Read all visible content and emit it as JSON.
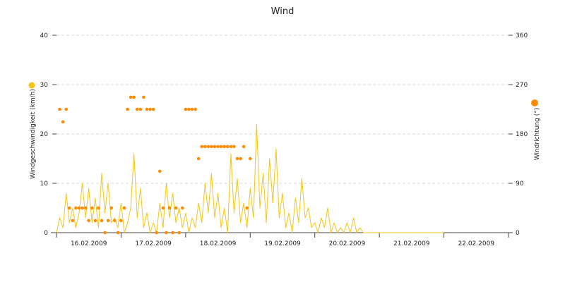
{
  "chart_data": {
    "type": "line",
    "title": "Wind",
    "ylabel_left": "Windgeschwindigkeit (km/h)",
    "ylabel_right": "Windrichtung (°)",
    "ylim_left": [
      0,
      40
    ],
    "ylim_right": [
      0,
      360
    ],
    "yticks_left": [
      "0",
      "10",
      "20",
      "30",
      "40"
    ],
    "yticks_right": [
      "0",
      "90",
      "180",
      "270",
      "360"
    ],
    "grid": true,
    "legend": "left and right of plot",
    "x_range": [
      0,
      7
    ],
    "xticks": [
      "16.02.2009",
      "17.02.2009",
      "18.02.2009",
      "19.02.2009",
      "20.02.2009",
      "21.02.2009",
      "22.02.2009"
    ],
    "colors": {
      "speed": "#f5c518",
      "direction": "#ff8c00",
      "grid": "#d8d8d8"
    },
    "series": [
      {
        "name": "Windgeschwindigkeit",
        "style": "line",
        "axis": "left",
        "points": [
          [
            0.0,
            0
          ],
          [
            0.05,
            3
          ],
          [
            0.1,
            1
          ],
          [
            0.15,
            8
          ],
          [
            0.2,
            2
          ],
          [
            0.25,
            5
          ],
          [
            0.3,
            1
          ],
          [
            0.35,
            4
          ],
          [
            0.4,
            10
          ],
          [
            0.45,
            3
          ],
          [
            0.5,
            9
          ],
          [
            0.55,
            2
          ],
          [
            0.6,
            7
          ],
          [
            0.65,
            1
          ],
          [
            0.7,
            12
          ],
          [
            0.75,
            4
          ],
          [
            0.8,
            10
          ],
          [
            0.85,
            2
          ],
          [
            0.9,
            3
          ],
          [
            0.95,
            1
          ],
          [
            1.0,
            6
          ],
          [
            1.05,
            0
          ],
          [
            1.1,
            2
          ],
          [
            1.15,
            5
          ],
          [
            1.2,
            16
          ],
          [
            1.25,
            3
          ],
          [
            1.3,
            9
          ],
          [
            1.35,
            1
          ],
          [
            1.4,
            4
          ],
          [
            1.45,
            0
          ],
          [
            1.5,
            2
          ],
          [
            1.55,
            0
          ],
          [
            1.6,
            6
          ],
          [
            1.65,
            1
          ],
          [
            1.7,
            10
          ],
          [
            1.75,
            3
          ],
          [
            1.8,
            8
          ],
          [
            1.85,
            2
          ],
          [
            1.9,
            5
          ],
          [
            1.95,
            1
          ],
          [
            2.0,
            4
          ],
          [
            2.05,
            0
          ],
          [
            2.1,
            3
          ],
          [
            2.15,
            1
          ],
          [
            2.2,
            6
          ],
          [
            2.25,
            2
          ],
          [
            2.3,
            10
          ],
          [
            2.35,
            4
          ],
          [
            2.4,
            12
          ],
          [
            2.45,
            3
          ],
          [
            2.5,
            8
          ],
          [
            2.55,
            1
          ],
          [
            2.6,
            5
          ],
          [
            2.65,
            0
          ],
          [
            2.7,
            16
          ],
          [
            2.75,
            4
          ],
          [
            2.8,
            11
          ],
          [
            2.85,
            2
          ],
          [
            2.9,
            6
          ],
          [
            2.95,
            1
          ],
          [
            3.0,
            9
          ],
          [
            3.05,
            3
          ],
          [
            3.1,
            22
          ],
          [
            3.15,
            5
          ],
          [
            3.2,
            12
          ],
          [
            3.25,
            2
          ],
          [
            3.3,
            15
          ],
          [
            3.35,
            6
          ],
          [
            3.4,
            17
          ],
          [
            3.45,
            3
          ],
          [
            3.5,
            8
          ],
          [
            3.55,
            1
          ],
          [
            3.6,
            4
          ],
          [
            3.65,
            0
          ],
          [
            3.7,
            7
          ],
          [
            3.75,
            2
          ],
          [
            3.8,
            11
          ],
          [
            3.85,
            3
          ],
          [
            3.9,
            5
          ],
          [
            3.95,
            1
          ],
          [
            4.0,
            2
          ],
          [
            4.05,
            0
          ],
          [
            4.1,
            3
          ],
          [
            4.15,
            1
          ],
          [
            4.2,
            5
          ],
          [
            4.25,
            0
          ],
          [
            4.3,
            2
          ],
          [
            4.35,
            0
          ],
          [
            4.4,
            1
          ],
          [
            4.45,
            0
          ],
          [
            4.5,
            2
          ],
          [
            4.55,
            0
          ],
          [
            4.6,
            3
          ],
          [
            4.65,
            0
          ],
          [
            4.7,
            1
          ],
          [
            4.75,
            0
          ],
          [
            4.8,
            0
          ],
          [
            4.85,
            0
          ],
          [
            4.9,
            0
          ],
          [
            4.95,
            0
          ],
          [
            5.0,
            0
          ],
          [
            5.05,
            0
          ],
          [
            5.1,
            0
          ],
          [
            5.15,
            0
          ],
          [
            5.2,
            0
          ],
          [
            5.25,
            0
          ],
          [
            5.3,
            0
          ],
          [
            5.35,
            0
          ],
          [
            5.4,
            0
          ],
          [
            5.45,
            0
          ],
          [
            5.5,
            0
          ],
          [
            5.55,
            0
          ],
          [
            5.6,
            0
          ],
          [
            5.65,
            0
          ],
          [
            5.7,
            0
          ],
          [
            5.75,
            0
          ],
          [
            5.8,
            0
          ],
          [
            5.85,
            0
          ],
          [
            5.9,
            0
          ],
          [
            5.95,
            0
          ],
          [
            6.0,
            0
          ]
        ]
      },
      {
        "name": "Windrichtung",
        "style": "markers",
        "axis": "right",
        "points": [
          [
            0.05,
            225
          ],
          [
            0.1,
            202
          ],
          [
            0.15,
            225
          ],
          [
            0.2,
            45
          ],
          [
            0.25,
            22
          ],
          [
            0.3,
            45
          ],
          [
            0.35,
            45
          ],
          [
            0.4,
            45
          ],
          [
            0.45,
            45
          ],
          [
            0.5,
            22
          ],
          [
            0.55,
            45
          ],
          [
            0.6,
            22
          ],
          [
            0.65,
            45
          ],
          [
            0.7,
            22
          ],
          [
            0.75,
            0
          ],
          [
            0.8,
            22
          ],
          [
            0.85,
            45
          ],
          [
            0.9,
            22
          ],
          [
            0.95,
            0
          ],
          [
            1.0,
            22
          ],
          [
            1.05,
            45
          ],
          [
            1.1,
            225
          ],
          [
            1.15,
            247
          ],
          [
            1.2,
            247
          ],
          [
            1.25,
            225
          ],
          [
            1.3,
            225
          ],
          [
            1.35,
            247
          ],
          [
            1.4,
            225
          ],
          [
            1.45,
            225
          ],
          [
            1.5,
            225
          ],
          [
            1.55,
            0
          ],
          [
            1.6,
            112
          ],
          [
            1.65,
            45
          ],
          [
            1.7,
            0
          ],
          [
            1.75,
            45
          ],
          [
            1.8,
            0
          ],
          [
            1.85,
            45
          ],
          [
            1.9,
            0
          ],
          [
            1.95,
            45
          ],
          [
            2.0,
            225
          ],
          [
            2.05,
            225
          ],
          [
            2.1,
            225
          ],
          [
            2.15,
            225
          ],
          [
            2.2,
            135
          ],
          [
            2.25,
            157
          ],
          [
            2.3,
            157
          ],
          [
            2.35,
            157
          ],
          [
            2.4,
            157
          ],
          [
            2.45,
            157
          ],
          [
            2.5,
            157
          ],
          [
            2.55,
            157
          ],
          [
            2.6,
            157
          ],
          [
            2.65,
            157
          ],
          [
            2.7,
            157
          ],
          [
            2.75,
            157
          ],
          [
            2.8,
            135
          ],
          [
            2.85,
            135
          ],
          [
            2.9,
            157
          ],
          [
            2.95,
            45
          ],
          [
            3.0,
            135
          ]
        ]
      }
    ]
  }
}
